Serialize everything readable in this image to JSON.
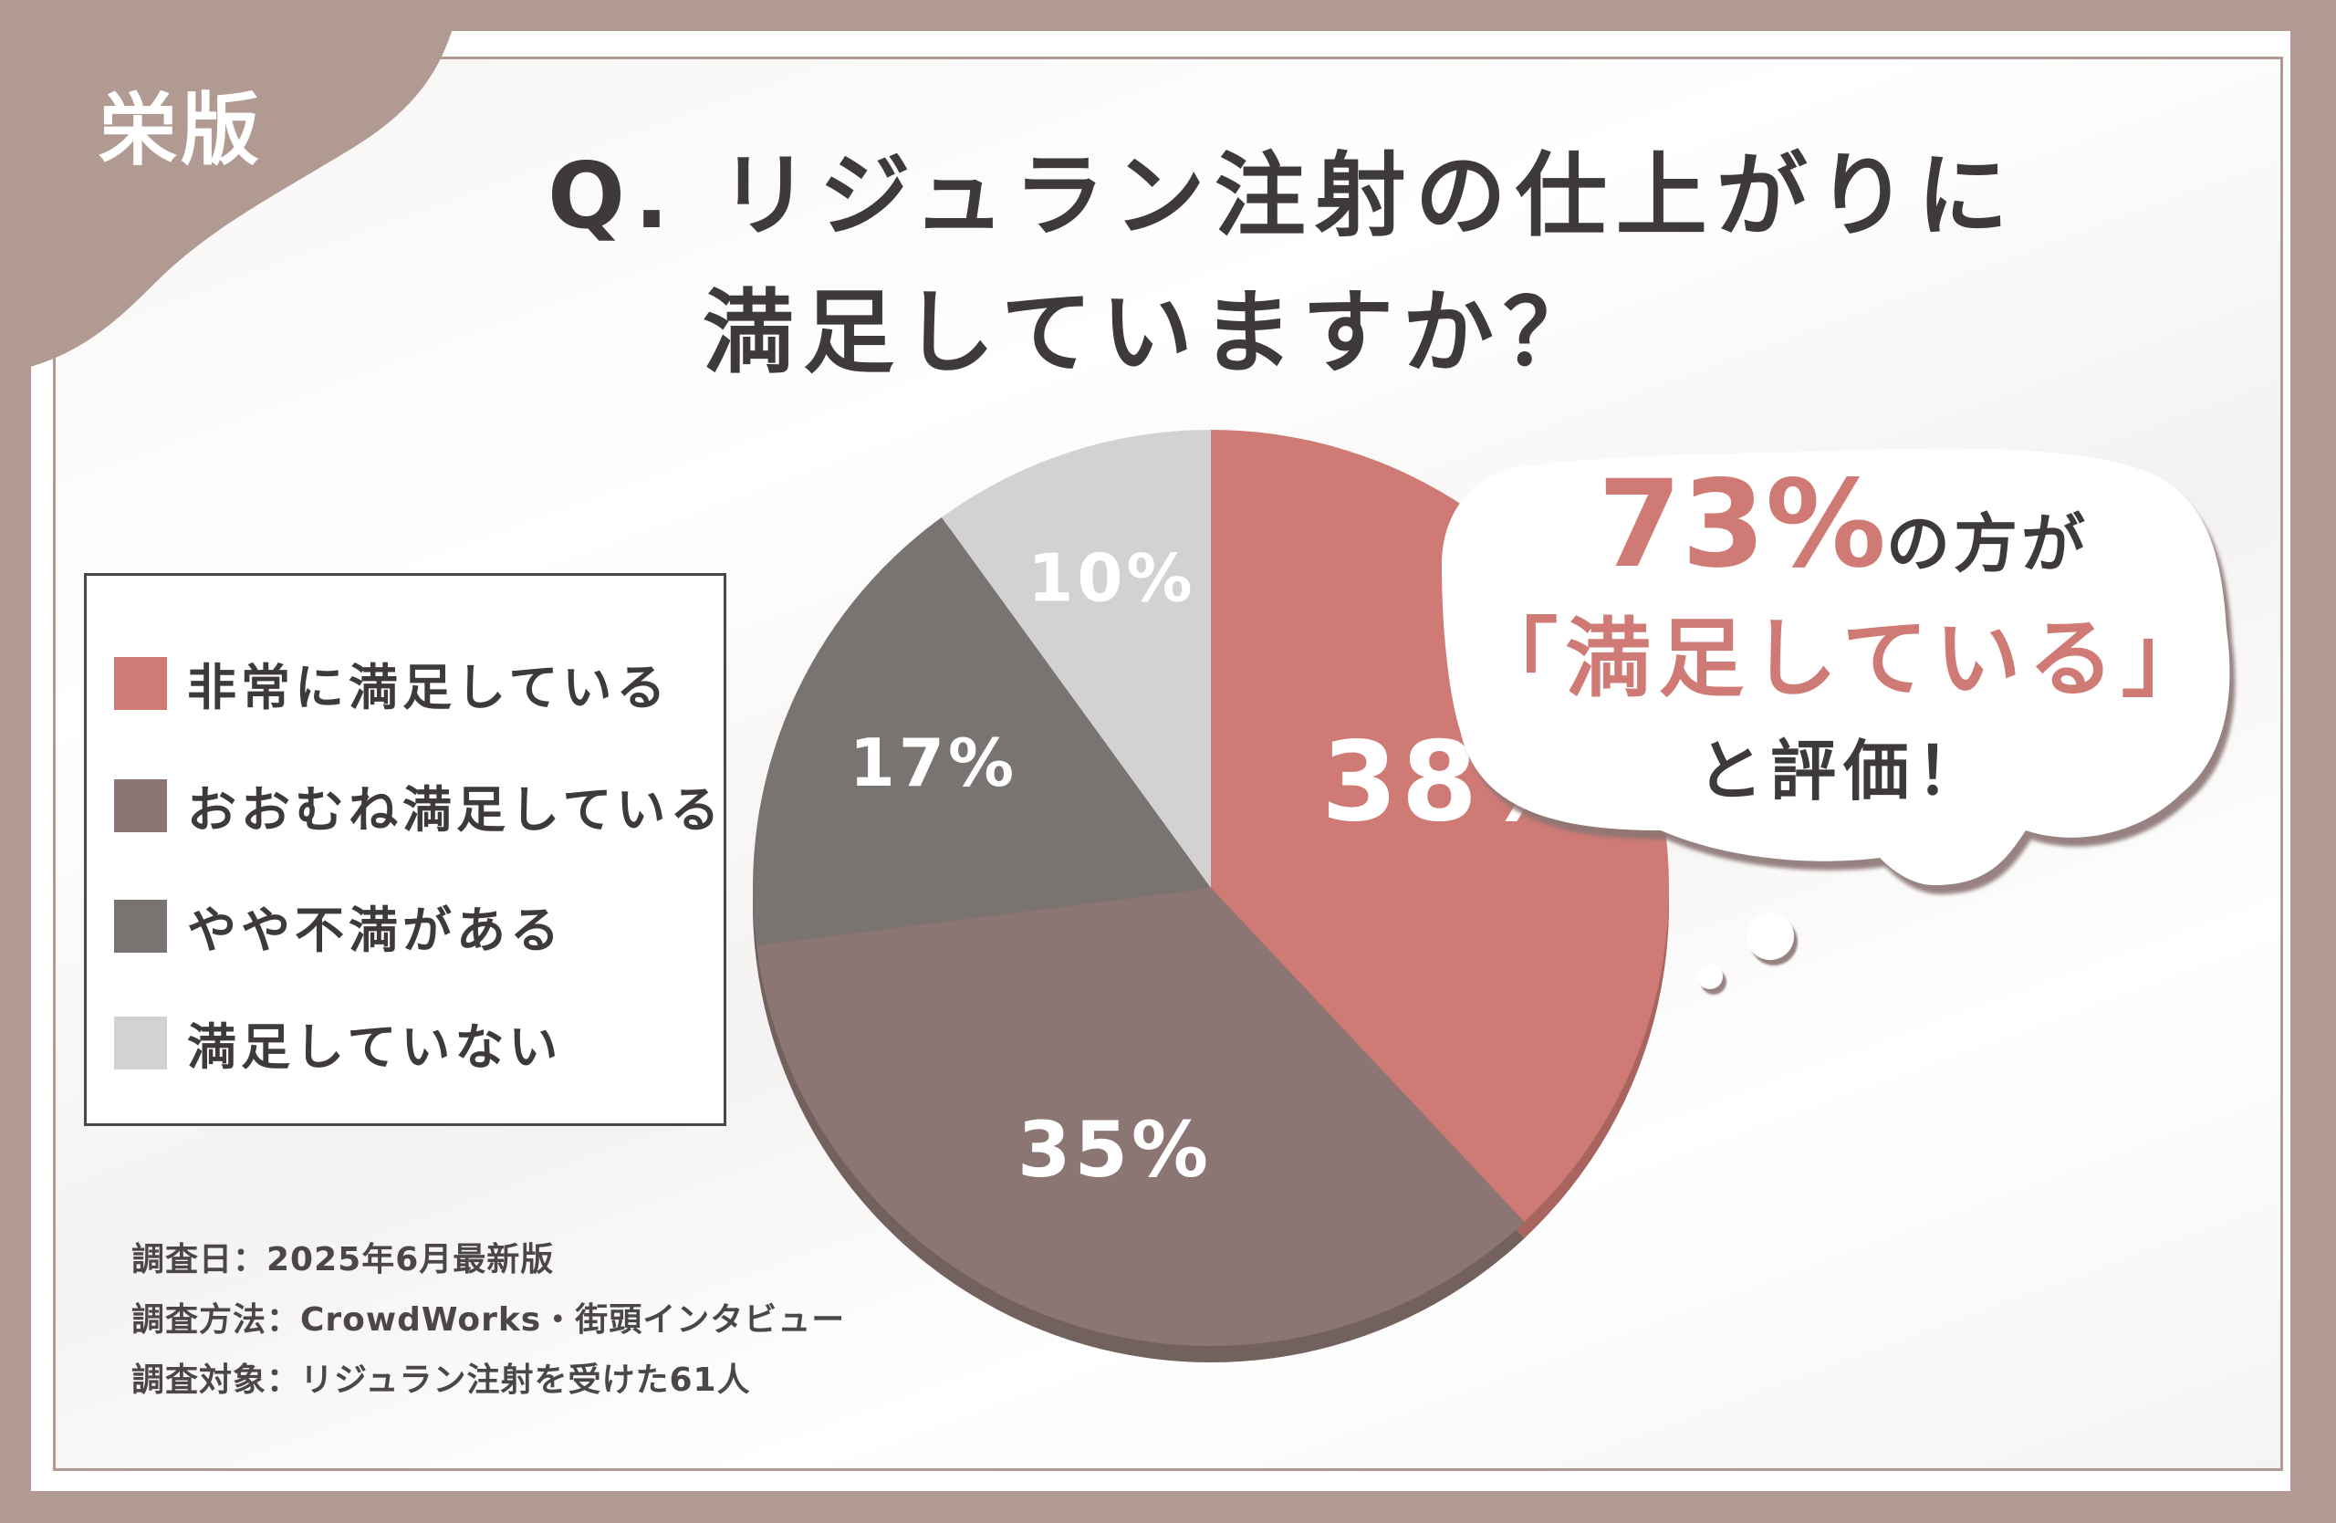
{
  "brand": {
    "label": "栄版",
    "color": "#b19a92"
  },
  "title": {
    "line1": "Q. リジュラン注射の仕上がりに",
    "line2": "満足していますか？"
  },
  "legend": {
    "items": [
      {
        "label": "非常に満足している",
        "color": "#cf7a74"
      },
      {
        "label": "おおむね満足している",
        "color": "#8c7673"
      },
      {
        "label": "やや不満がある",
        "color": "#797372"
      },
      {
        "label": "満足していない",
        "color": "#d3d2d2"
      }
    ]
  },
  "callout": {
    "percent": "73%",
    "line1_suffix": "の方が",
    "line2": "「満足している」",
    "line3": "と評価！"
  },
  "notes": {
    "date": "調査日：2025年6月最新版",
    "method": "調査方法：CrowdWorks・街頭インタビュー",
    "target": "調査対象：リジュラン注射を受けた61人"
  },
  "chart_data": {
    "type": "pie",
    "categories": [
      "非常に満足している",
      "おおむね満足している",
      "やや不満がある",
      "満足していない"
    ],
    "values": [
      38,
      35,
      17,
      10
    ],
    "labels": [
      "38%",
      "35%",
      "17%",
      "10%"
    ],
    "colors": [
      "#cf7a74",
      "#8c7673",
      "#797372",
      "#d3d2d2"
    ],
    "start_angle": "12 o'clock",
    "direction": "clockwise",
    "title": "Q. リジュラン注射の仕上がりに満足していますか？",
    "legend": "left"
  }
}
